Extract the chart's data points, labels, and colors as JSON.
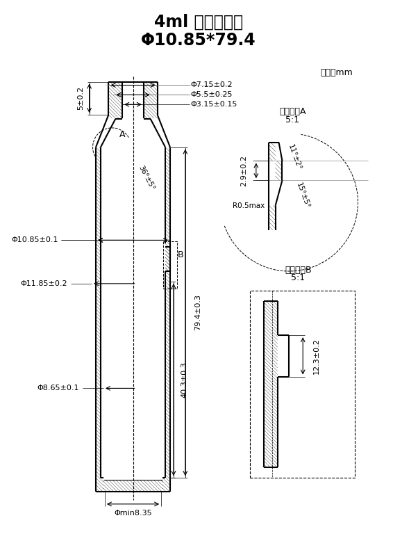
{
  "title_line1": "4ml 双腔卡式瓶",
  "title_line2": "Φ10.85*79.4",
  "unit_label": "单位：mm",
  "phi715": "Φ7.15±0.2",
  "phi55": "Φ5.5±0.25",
  "phi315": "Φ3.15±0.15",
  "phi1085": "Φ10.85±0.1",
  "phi1185": "Φ11.85±0.2",
  "phi865": "Φ8.65±0.1",
  "phimin835": "Φmin8.35",
  "dim5": "5±0.2",
  "dim794": "79.4±0.3",
  "dim403": "40.3±0.3",
  "angle36": "36°±5°",
  "label_A": "A",
  "label_B": "B",
  "enlargeA": "局部放大A",
  "enlargeA_ratio": "5:1",
  "enlargeB": "局部放大B",
  "enlargeB_ratio": "5:1",
  "dim29": "2.9±0.2",
  "angle11": "11°±2°",
  "angle15": "15°±5°",
  "r05": "R0.5max",
  "dim123": "12.3±0.2",
  "bg_color": "#ffffff"
}
